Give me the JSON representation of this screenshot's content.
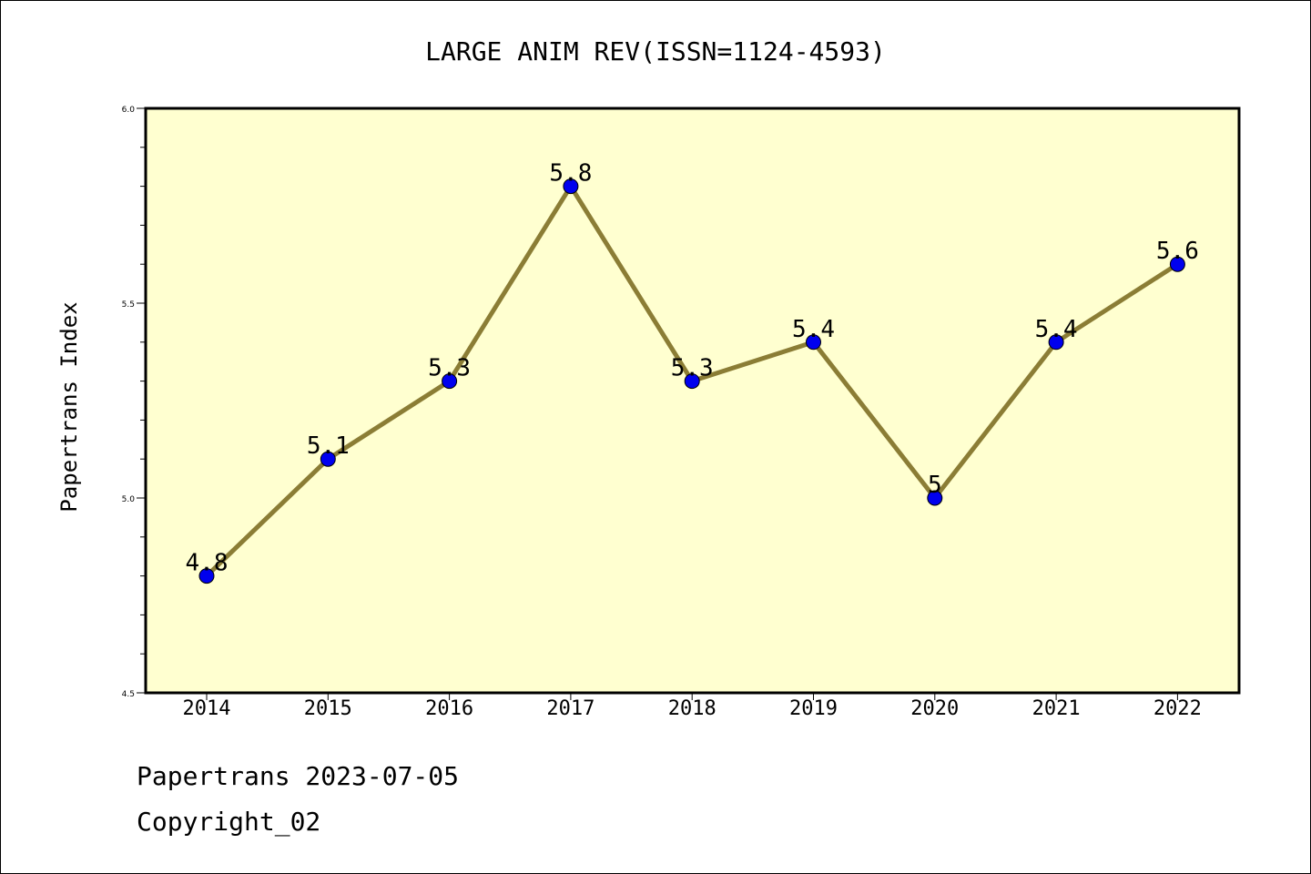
{
  "chart_data": {
    "type": "line",
    "title": "LARGE ANIM REV(ISSN=1124-4593)",
    "xlabel": "",
    "ylabel": "Papertrans Index",
    "categories": [
      "2014",
      "2015",
      "2016",
      "2017",
      "2018",
      "2019",
      "2020",
      "2021",
      "2022"
    ],
    "series": [
      {
        "values": [
          4.8,
          5.1,
          5.3,
          5.8,
          5.3,
          5.4,
          5.0,
          5.4,
          5.6
        ]
      }
    ],
    "data_labels": [
      "4.8",
      "5.1",
      "5.3",
      "5.8",
      "5.3",
      "5.4",
      "5",
      "5.4",
      "5.6"
    ],
    "ylim": [
      4.5,
      6.0
    ],
    "yticks": [
      4.5,
      5.0,
      5.5,
      6.0
    ],
    "ytick_labels": [
      "4.5",
      "5.0",
      "5.5",
      "6.0"
    ],
    "grid": false,
    "legend": "none",
    "colors": {
      "plot_background": "#ffffd0",
      "line": "#8b7d35",
      "marker_fill": "#0000ee",
      "marker_edge": "#000000"
    }
  },
  "footer": {
    "line1": "Papertrans 2023-07-05",
    "line2": "Copyright_02"
  }
}
